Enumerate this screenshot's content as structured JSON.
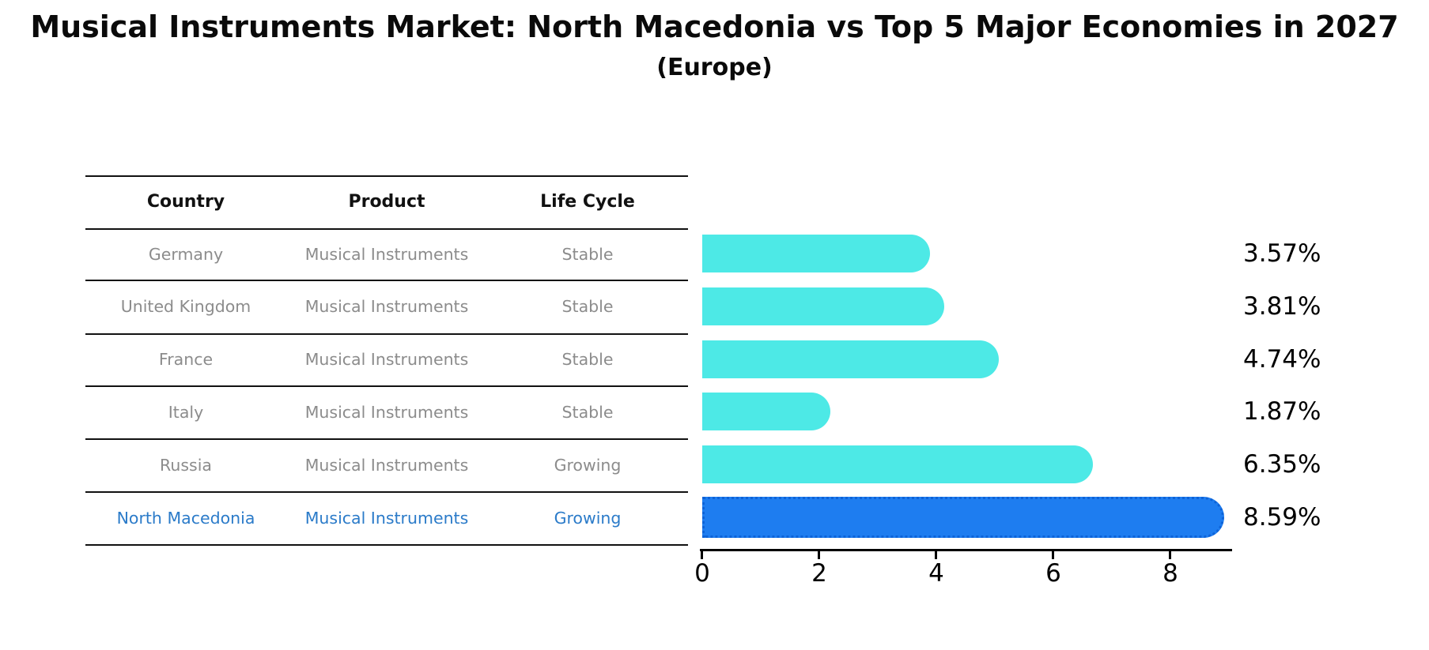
{
  "title": "Musical Instruments Market: North Macedonia vs Top 5 Major Economies in 2027",
  "subtitle": "(Europe)",
  "table": {
    "headers": [
      "Country",
      "Product",
      "Life Cycle"
    ],
    "rows": [
      {
        "country": "Germany",
        "product": "Musical Instruments",
        "life_cycle": "Stable",
        "highlighted": false
      },
      {
        "country": "United Kingdom",
        "product": "Musical Instruments",
        "life_cycle": "Stable",
        "highlighted": false
      },
      {
        "country": "France",
        "product": "Musical Instruments",
        "life_cycle": "Stable",
        "highlighted": false
      },
      {
        "country": "Italy",
        "product": "Musical Instruments",
        "life_cycle": "Stable",
        "highlighted": false
      },
      {
        "country": "Russia",
        "product": "Musical Instruments",
        "life_cycle": "Growing",
        "highlighted": false
      },
      {
        "country": "North Macedonia",
        "product": "Musical Instruments",
        "life_cycle": "Growing",
        "highlighted": true
      }
    ]
  },
  "chart_data": {
    "type": "bar",
    "orientation": "horizontal",
    "title": "Musical Instruments Market: North Macedonia vs Top 5 Major Economies in 2027 (Europe)",
    "categories": [
      "Germany",
      "United Kingdom",
      "France",
      "Italy",
      "Russia",
      "North Macedonia"
    ],
    "values": [
      3.57,
      3.81,
      4.74,
      1.87,
      6.35,
      8.59
    ],
    "value_labels": [
      "3.57%",
      "3.81%",
      "4.74%",
      "1.87%",
      "6.35%",
      "8.59%"
    ],
    "x_ticks": [
      0,
      2,
      4,
      6,
      8
    ],
    "xlim": [
      0,
      9
    ],
    "grid": false,
    "legend": "none",
    "highlight_index": 5,
    "colors": {
      "bar": "#4DE9E6",
      "highlight_bar": "#1E7DF0",
      "highlight_edge": "#0d63d8",
      "row_text": "#8c8c8c",
      "highlight_text": "#2b7bc9",
      "axis": "#000000"
    }
  }
}
